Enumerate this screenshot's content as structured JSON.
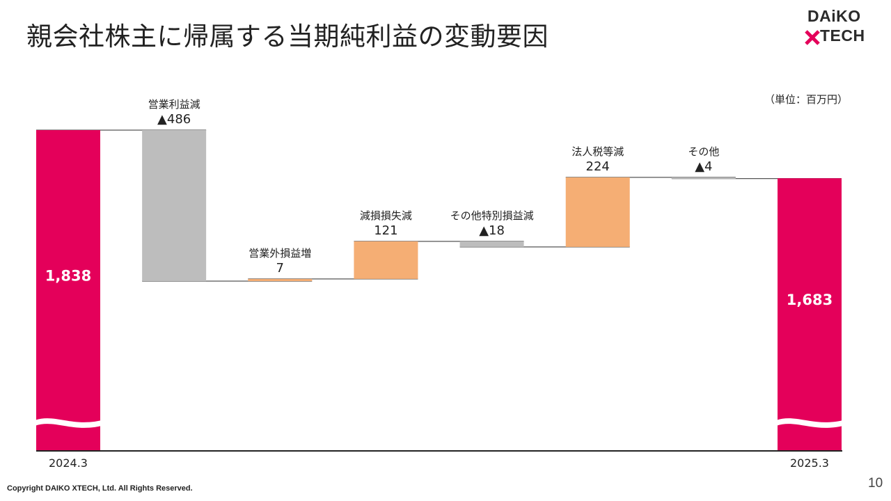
{
  "header": {
    "title": "親会社株主に帰属する当期純利益の変動要因"
  },
  "logo": {
    "line1": "DAiKO",
    "line2": "TECH",
    "x_color": "#e4005a"
  },
  "unit_label": "（単位：百万円）",
  "chart_data": {
    "type": "waterfall",
    "unit": "百万円",
    "axis_break": true,
    "steps": [
      {
        "kind": "total",
        "category": "2024.3",
        "value": 1838,
        "value_label": "1,838",
        "color": "#e4005a"
      },
      {
        "kind": "delta",
        "name": "営業利益減",
        "value": -486,
        "value_label": "▲486",
        "color": "#bdbdbd"
      },
      {
        "kind": "delta",
        "name": "営業外損益増",
        "value": 7,
        "value_label": "7",
        "color": "#f5ae74"
      },
      {
        "kind": "delta",
        "name": "減損損失減",
        "value": 121,
        "value_label": "121",
        "color": "#f5ae74"
      },
      {
        "kind": "delta",
        "name": "その他特別損益減",
        "value": -18,
        "value_label": "▲18",
        "color": "#bdbdbd"
      },
      {
        "kind": "delta",
        "name": "法人税等減",
        "value": 224,
        "value_label": "224",
        "color": "#f5ae74"
      },
      {
        "kind": "delta",
        "name": "その他",
        "value": -4,
        "value_label": "▲4",
        "color": "#bdbdbd"
      },
      {
        "kind": "total",
        "category": "2025.3",
        "value": 1683,
        "value_label": "1,683",
        "color": "#e4005a"
      }
    ]
  },
  "footer": {
    "copyright": "Copyright DAIKO XTECH, Ltd. All Rights Reserved.",
    "page_number": "10"
  }
}
